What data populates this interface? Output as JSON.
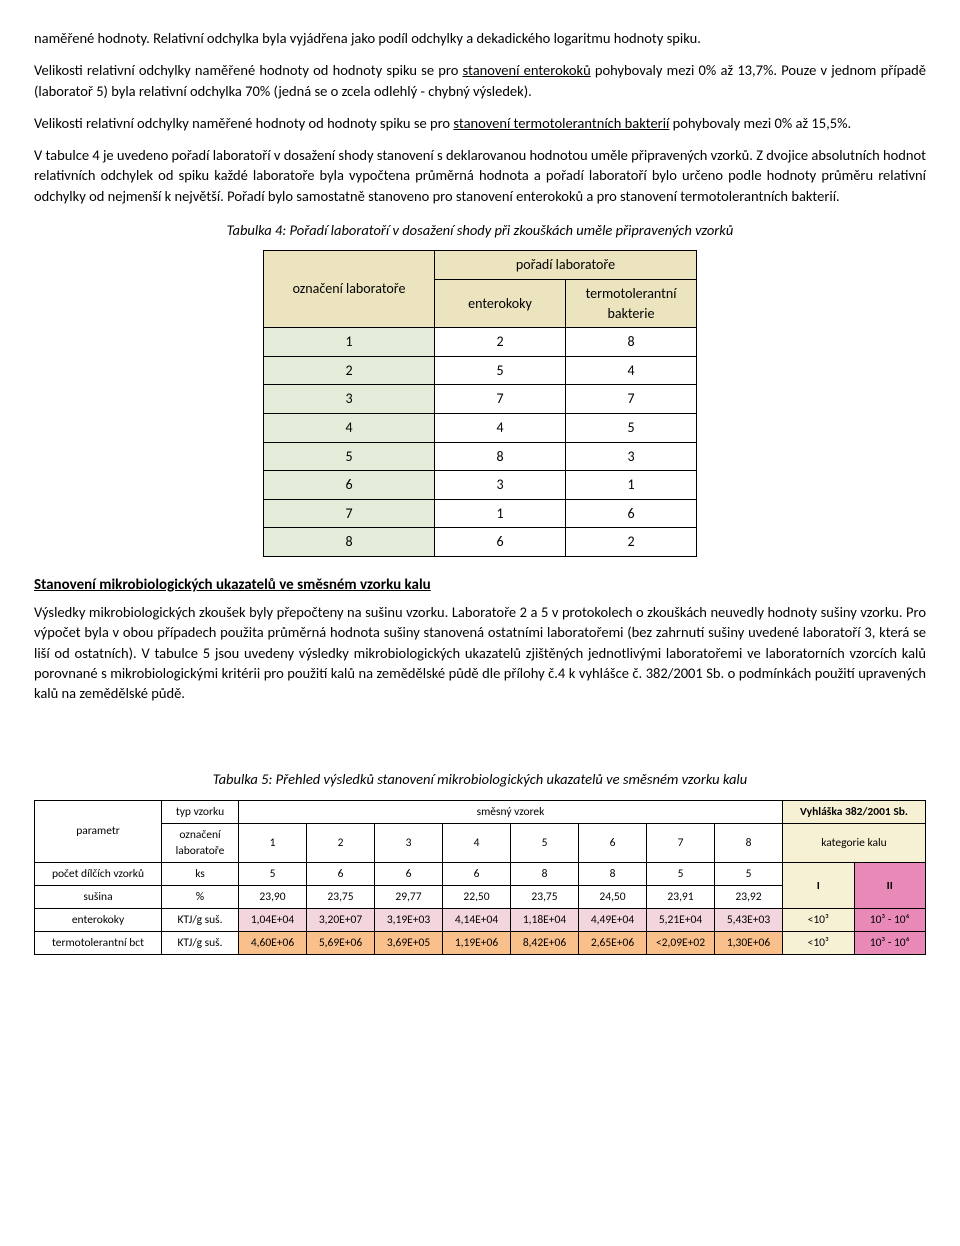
{
  "paragraphs": {
    "p1a": "naměřené hodnoty. Relativní odchylka byla vyjádřena jako podíl odchylky a dekadického logaritmu hodnoty spiku.",
    "p2_pre": "Velikosti relativní odchylky naměřené hodnoty od hodnoty spiku se pro ",
    "p2_u": "stanovení enterokoků",
    "p2_post": " pohybovaly mezi 0% až 13,7%. Pouze v jednom případě (laboratoř 5) byla relativní odchylka 70% (jedná se o zcela odlehlý - chybný výsledek).",
    "p3_pre": "Velikosti relativní odchylky naměřené hodnoty od hodnoty spiku se pro ",
    "p3_u": "stanovení termotolerantních bakterií",
    "p3_post": " pohybovaly mezi 0% až 15,5%.",
    "p4": "V tabulce 4 je uvedeno pořadí laboratoří v dosažení shody stanovení s deklarovanou hodnotou uměle připravených vzorků. Z dvojice absolutních hodnot relativních odchylek od spiku každé laboratoře byla vypočtena průměrná hodnota a pořadí laboratoří bylo určeno podle hodnoty průměru relativní odchylky od nejmenší k největší. Pořadí bylo samostatně stanoveno pro stanovení enterokoků a pro stanovení termotolerantních bakterií.",
    "caption4": "Tabulka 4: Pořadí laboratoří v dosažení shody při zkouškách uměle připravených vzorků",
    "section_heading": "Stanovení mikrobiologických ukazatelů ve směsném vzorku kalu",
    "p5": "Výsledky mikrobiologických zkoušek byly přepočteny na sušinu vzorku. Laboratoře 2 a 5 v protokolech o zkouškách neuvedly hodnoty sušiny vzorku. Pro výpočet byla v obou případech použita průměrná hodnota sušiny stanovená ostatními laboratořemi (bez zahrnutí sušiny uvedené laboratoří 3, která se liší od ostatních). V tabulce 5 jsou uvedeny výsledky mikrobiologických ukazatelů zjištěných jednotlivými laboratořemi ve laboratorních vzorcích kalů porovnané s mikrobiologickými kritérii pro použití kalů na zemědělské půdě dle přílohy č.4 k vyhlášce č. 382/2001 Sb. o podmínkách použití upravených kalů na zemědělské půdě.",
    "caption5": "Tabulka 5: Přehled výsledků stanovení mikrobiologických ukazatelů ve směsném vzorku kalu"
  },
  "table4": {
    "header_bg": "#ece4be",
    "lab_col_bg": "#e3ecd9",
    "lab_header": "označení laboratoře",
    "group_header": "pořadí laboratoře",
    "col_entero": "enterokoky",
    "col_termo": "termotolerantní bakterie",
    "rows": [
      {
        "lab": "1",
        "entero": "2",
        "termo": "8"
      },
      {
        "lab": "2",
        "entero": "5",
        "termo": "4"
      },
      {
        "lab": "3",
        "entero": "7",
        "termo": "7"
      },
      {
        "lab": "4",
        "entero": "4",
        "termo": "5"
      },
      {
        "lab": "5",
        "entero": "8",
        "termo": "3"
      },
      {
        "lab": "6",
        "entero": "3",
        "termo": "1"
      },
      {
        "lab": "7",
        "entero": "1",
        "termo": "6"
      },
      {
        "lab": "8",
        "entero": "6",
        "termo": "2"
      }
    ]
  },
  "table5": {
    "colors": {
      "header_yellow": "#f6f0d4",
      "pink": "#f3d6dd",
      "orange": "#f9c08c",
      "magenta": "#e889b7"
    },
    "hdr_parametr": "parametr",
    "hdr_typ_vzorku": "typ vzorku",
    "hdr_smesny": "směsný vzorek",
    "hdr_vyhlaska": "Vyhláška 382/2001 Sb.",
    "hdr_oznaceni": "označení laboratoře",
    "hdr_kategorie": "kategorie kalu",
    "labs": [
      "1",
      "2",
      "3",
      "4",
      "5",
      "6",
      "7",
      "8"
    ],
    "kat_I": "I",
    "kat_II": "II",
    "rows": [
      {
        "param": "počet dílčích vzorků",
        "unit": "ks",
        "values": [
          "5",
          "6",
          "6",
          "6",
          "8",
          "8",
          "5",
          "5"
        ],
        "cell_bg": "#ffffff"
      },
      {
        "param": "sušina",
        "unit": "%",
        "values": [
          "23,90",
          "23,75",
          "29,77",
          "22,50",
          "23,75",
          "24,50",
          "23,91",
          "23,92"
        ],
        "cell_bg": "#ffffff"
      },
      {
        "param": "enterokoky",
        "unit": "KTJ/g suš.",
        "values": [
          "1,04E+04",
          "3,20E+07",
          "3,19E+03",
          "4,14E+04",
          "1,18E+04",
          "4,49E+04",
          "5,21E+04",
          "5,43E+03"
        ],
        "cell_bg": "pink",
        "kat1": "<10³",
        "kat2": "10³ - 10⁶"
      },
      {
        "param": "termotolerantní bct",
        "unit": "KTJ/g suš.",
        "values": [
          "4,60E+06",
          "5,69E+06",
          "3,69E+05",
          "1,19E+06",
          "8,42E+06",
          "2,65E+06",
          "<2,09E+02",
          "1,30E+06"
        ],
        "cell_bg": "orange",
        "kat1": "<10³",
        "kat2": "10³ - 10⁶"
      }
    ]
  }
}
